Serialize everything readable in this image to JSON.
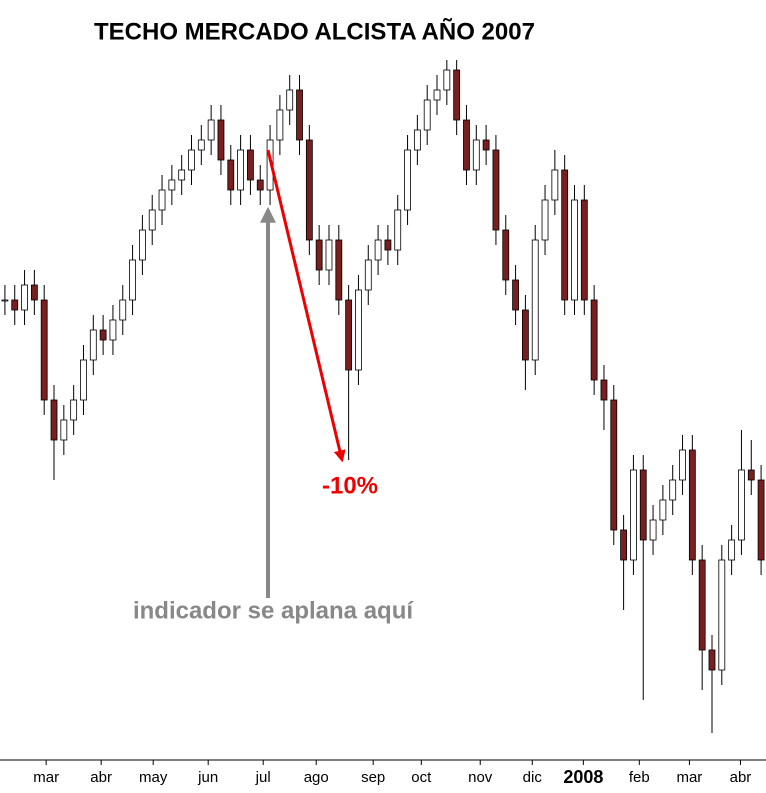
{
  "chart_data": {
    "type": "candlestick",
    "title": "TECHO MERCADO ALCISTA AÑO 2007",
    "open": [
      44,
      44,
      43,
      45.5,
      44,
      34,
      30,
      32,
      34,
      38,
      41,
      40,
      42,
      44,
      48,
      51,
      53,
      55,
      56,
      57,
      59,
      60,
      62,
      58,
      55,
      59,
      56,
      55,
      60,
      63,
      65,
      60,
      50,
      47,
      50,
      44,
      37,
      45,
      48,
      50,
      49,
      53,
      59,
      61,
      64,
      65,
      67,
      62,
      57,
      60,
      59,
      51,
      46,
      43,
      38,
      50,
      54,
      57,
      44,
      54,
      44,
      36,
      34,
      21,
      18,
      27,
      20,
      22,
      24,
      26,
      29,
      18,
      9,
      7,
      18,
      20,
      27,
      26
    ],
    "high": [
      45.5,
      45.5,
      47,
      47,
      45.5,
      35.5,
      33.5,
      35.5,
      39.5,
      42.5,
      42.5,
      43.5,
      45.5,
      49.5,
      52.5,
      54.5,
      56.5,
      57.5,
      58.5,
      60.5,
      61.5,
      63.5,
      63.5,
      59.5,
      60.5,
      60.5,
      57.5,
      61.5,
      64.5,
      66.5,
      66.5,
      61.5,
      51.5,
      51.5,
      51.5,
      45.5,
      46.5,
      49.5,
      51.5,
      51.5,
      54.5,
      60.5,
      62.5,
      65.5,
      66.5,
      68,
      68,
      63.5,
      61.5,
      61.5,
      60.5,
      52.5,
      47.5,
      44.5,
      51.5,
      55.5,
      59,
      58.5,
      55.5,
      55.5,
      45.5,
      37.5,
      35.5,
      22.5,
      28.5,
      28.5,
      23.5,
      25.5,
      27.5,
      30.5,
      30.5,
      19.5,
      10.5,
      19.5,
      21.5,
      31,
      30,
      27.5
    ],
    "low": [
      42.5,
      41.5,
      41.5,
      42.5,
      32.5,
      26,
      28.5,
      30.5,
      32.5,
      36.5,
      38.5,
      38.5,
      40.5,
      42.5,
      46.5,
      49.5,
      51.5,
      53.5,
      54.5,
      55.5,
      57.5,
      58.5,
      56.5,
      53.5,
      53.5,
      54.5,
      53.5,
      53.5,
      58.5,
      61.5,
      58.5,
      48.5,
      45.5,
      45.5,
      42.5,
      28,
      35.5,
      43.5,
      46.5,
      47.5,
      47.5,
      51.5,
      57.5,
      59.5,
      62.5,
      63.5,
      60.5,
      55.5,
      55.5,
      57.5,
      49.5,
      44.5,
      41.5,
      35,
      36.5,
      48.5,
      52.5,
      42.5,
      42.5,
      42.5,
      34.5,
      31,
      19.5,
      13,
      16.5,
      4,
      18.5,
      20.5,
      22.5,
      24.5,
      16.5,
      5,
      0.7,
      5.5,
      16.5,
      18.5,
      24.5,
      16.5
    ],
    "close": [
      44,
      43,
      45.5,
      44,
      34,
      30,
      32,
      34,
      38,
      41,
      40,
      42,
      44,
      48,
      51,
      53,
      55,
      56,
      57,
      59,
      60,
      62,
      58,
      55,
      59,
      56,
      55,
      60,
      63,
      65,
      60,
      50,
      47,
      50,
      44,
      37,
      45,
      48,
      50,
      49,
      53,
      59,
      61,
      64,
      65,
      67,
      62,
      57,
      60,
      59,
      51,
      46,
      43,
      38,
      50,
      54,
      57,
      44,
      54,
      44,
      36,
      34,
      21,
      18,
      27,
      20,
      22,
      24,
      26,
      29,
      18,
      9,
      7,
      18,
      20,
      27,
      26,
      18
    ],
    "ylim": [
      0,
      68
    ],
    "xlim": [
      -0.5,
      77.5
    ],
    "xticks": [
      {
        "value": 4.2,
        "label": "mar"
      },
      {
        "value": 9.8,
        "label": "abr"
      },
      {
        "value": 15.1,
        "label": "may"
      },
      {
        "value": 20.7,
        "label": "jun"
      },
      {
        "value": 26.3,
        "label": "jul"
      },
      {
        "value": 31.7,
        "label": "ago"
      },
      {
        "value": 37.5,
        "label": "sep"
      },
      {
        "value": 42.4,
        "label": "oct"
      },
      {
        "value": 48.4,
        "label": "nov"
      },
      {
        "value": 53.7,
        "label": "dic"
      },
      {
        "value": 58.9,
        "label": "2008",
        "bold": true
      },
      {
        "value": 64.6,
        "label": "feb"
      },
      {
        "value": 69.7,
        "label": "mar"
      },
      {
        "value": 74.9,
        "label": "abr"
      }
    ],
    "up_color": "#ffffff",
    "down_color": "#7a1f1f",
    "wick_color": "#000000",
    "annotations": [
      {
        "text": "-10%",
        "color": "#ee0000"
      },
      {
        "text": "indicador se aplana aquí",
        "color": "#888888"
      }
    ]
  }
}
